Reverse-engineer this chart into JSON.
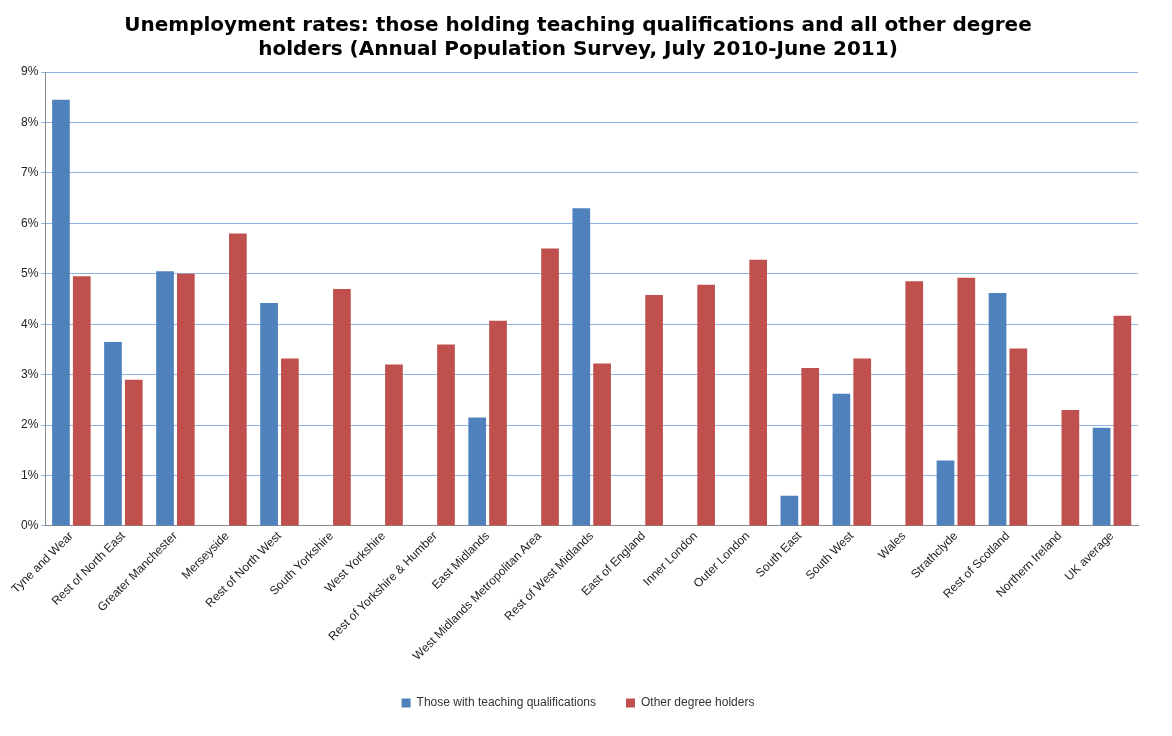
{
  "chart_data": {
    "type": "bar",
    "title": "Unemployment rates: those holding teaching qualifications and all other degree holders (Annual Population Survey, July 2010-June 2011)",
    "categories": [
      "Tyne and Wear",
      "Rest of North East",
      "Greater Manchester",
      "Merseyside",
      "Rest of North West",
      "South Yorkshire",
      "West Yorkshire",
      "Rest of Yorkshire & Humber",
      "East Midlands",
      "West Midlands Metropolitan Area",
      "Rest of West Midlands",
      "East of England",
      "Inner London",
      "Outer London",
      "South East",
      "South West",
      "Wales",
      "Strathclyde",
      "Rest of Scotland",
      "Northern Ireland",
      "UK average"
    ],
    "series": [
      {
        "name": "Those with teaching qualifications",
        "color": "#4f81bd",
        "values": [
          8.45,
          3.65,
          5.05,
          null,
          4.42,
          null,
          null,
          null,
          2.15,
          null,
          6.3,
          null,
          null,
          null,
          0.6,
          2.62,
          null,
          1.3,
          4.62,
          null,
          1.95
        ]
      },
      {
        "name": "Other degree holders",
        "color": "#c0504d",
        "values": [
          4.95,
          2.9,
          5.0,
          5.8,
          3.32,
          4.7,
          3.2,
          3.6,
          4.07,
          5.5,
          3.22,
          4.58,
          4.78,
          5.28,
          3.13,
          3.32,
          4.85,
          4.92,
          3.52,
          2.3,
          4.17
        ]
      }
    ],
    "ylim": [
      0,
      9
    ],
    "yticks": [
      {
        "value": 0,
        "label": "0%"
      },
      {
        "value": 1,
        "label": "1%"
      },
      {
        "value": 2,
        "label": "2%"
      },
      {
        "value": 3,
        "label": "3%"
      },
      {
        "value": 4,
        "label": "4%"
      },
      {
        "value": 5,
        "label": "5%"
      },
      {
        "value": 6,
        "label": "6%"
      },
      {
        "value": 7,
        "label": "7%"
      },
      {
        "value": 8,
        "label": "8%"
      },
      {
        "value": 9,
        "label": "9%"
      }
    ],
    "grid": "y",
    "legend": "bottom"
  }
}
